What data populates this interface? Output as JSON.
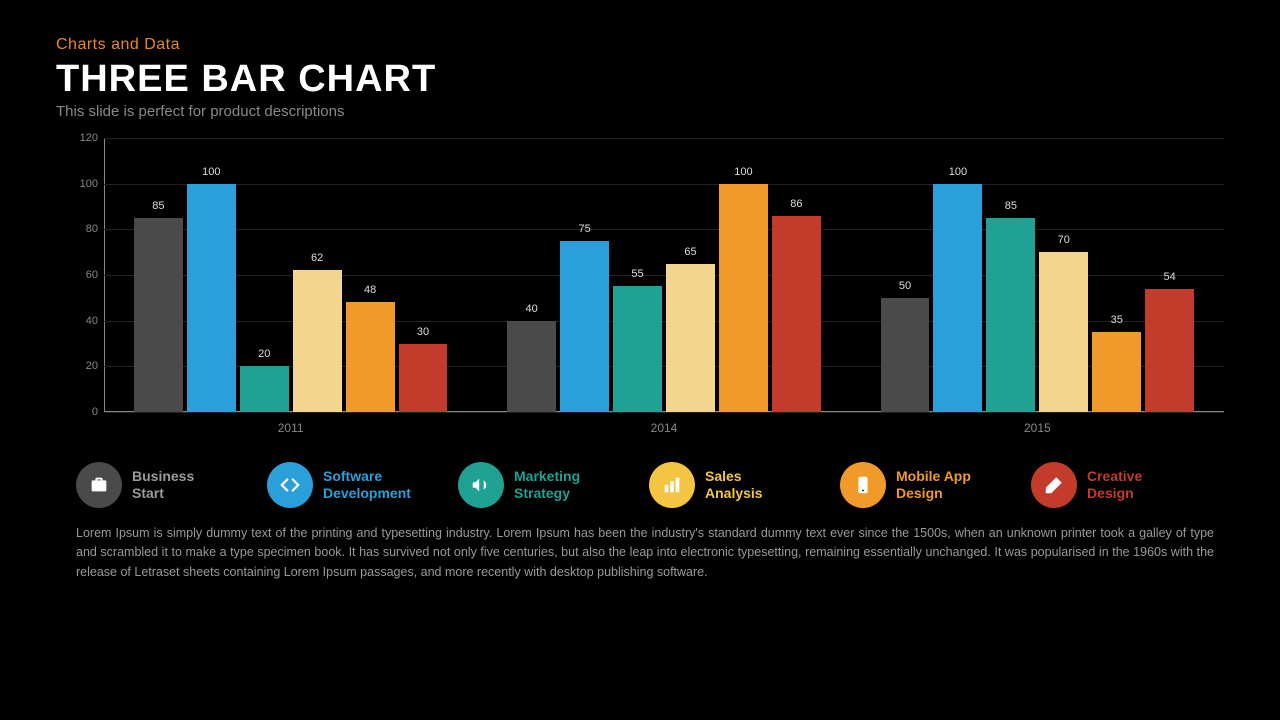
{
  "header": {
    "pretitle": "Charts and Data",
    "pretitle_color": "#e8872b",
    "title": "THREE BAR CHART",
    "title_color": "#ffffff",
    "title_fontsize": 38,
    "subtitle": "This slide is perfect for product descriptions",
    "subtitle_color": "#888888"
  },
  "chart": {
    "type": "grouped-bar",
    "background_color": "#000000",
    "grid_color": "#222222",
    "axis_color": "#888888",
    "label_color": "#dddddd",
    "label_fontsize": 11,
    "ylim": [
      0,
      120
    ],
    "ytick_step": 20,
    "yticks": [
      0,
      20,
      40,
      60,
      80,
      100,
      120
    ],
    "categories": [
      "2011",
      "2014",
      "2015"
    ],
    "series_colors": [
      "#4a4a4a",
      "#2b9fd9",
      "#1fa193",
      "#f4d58d",
      "#f09a2a",
      "#c23b2b"
    ],
    "groups": [
      {
        "label": "2011",
        "values": [
          85,
          100,
          20,
          62,
          48,
          30
        ]
      },
      {
        "label": "2014",
        "values": [
          40,
          75,
          55,
          65,
          100,
          86
        ]
      },
      {
        "label": "2015",
        "values": [
          50,
          100,
          85,
          70,
          35,
          54
        ]
      }
    ]
  },
  "legend": {
    "items": [
      {
        "icon": "briefcase",
        "bg": "#4a4a4a",
        "fg": "#ffffff",
        "line1": "Business",
        "line2": "Start",
        "text_color": "#9a9a9a"
      },
      {
        "icon": "code",
        "bg": "#2b9fd9",
        "fg": "#ffffff",
        "line1": "Software",
        "line2": "Development",
        "text_color": "#2b9fd9"
      },
      {
        "icon": "megaphone",
        "bg": "#1fa193",
        "fg": "#ffffff",
        "line1": "Marketing",
        "line2": "Strategy",
        "text_color": "#1fa193"
      },
      {
        "icon": "bars",
        "bg": "#f4c542",
        "fg": "#ffffff",
        "line1": "Sales",
        "line2": "Analysis",
        "text_color": "#f4c542"
      },
      {
        "icon": "phone",
        "bg": "#f09a2a",
        "fg": "#ffffff",
        "line1": "Mobile App",
        "line2": "Design",
        "text_color": "#f09a2a"
      },
      {
        "icon": "brush",
        "bg": "#c23b2b",
        "fg": "#ffffff",
        "line1": "Creative",
        "line2": "Design",
        "text_color": "#c23b2b"
      }
    ]
  },
  "body": {
    "text": "Lorem Ipsum is simply dummy text of the printing and typesetting industry. Lorem Ipsum has been the industry's standard dummy text ever since the 1500s, when an unknown printer took a galley of type and scrambled it to make a type specimen book. It has survived not only five centuries, but also the leap into electronic typesetting, remaining essentially unchanged. It was popularised in the 1960s with the release of Letraset sheets containing Lorem Ipsum passages, and more recently with desktop publishing software.",
    "color": "#999999",
    "fontsize": 12.5
  }
}
